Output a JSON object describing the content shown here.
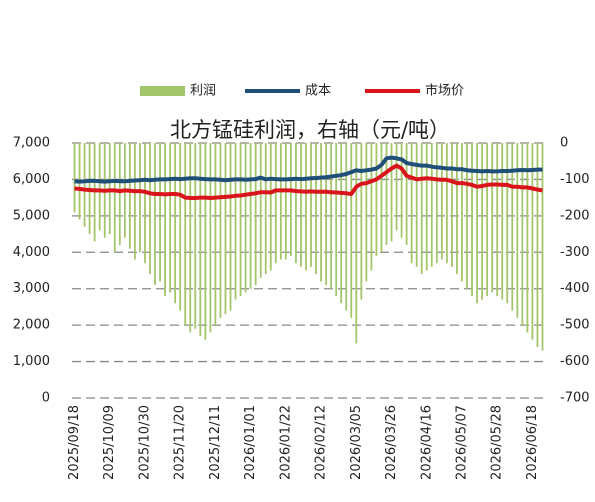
{
  "chart_data": {
    "type": "bar-line",
    "title": "北方锰硅利润，右轴（元/吨）",
    "categories": [
      "2025/09/18",
      null,
      null,
      null,
      null,
      null,
      null,
      "2025/10/09",
      null,
      null,
      null,
      null,
      null,
      null,
      "2025/10/30",
      null,
      null,
      null,
      null,
      null,
      null,
      "2025/11/20",
      null,
      null,
      null,
      null,
      null,
      null,
      "2025/12/11",
      null,
      null,
      null,
      null,
      null,
      null,
      "2026/01/01",
      null,
      null,
      null,
      null,
      null,
      null,
      "2026/01/22",
      null,
      null,
      null,
      null,
      null,
      null,
      "2026/02/12",
      null,
      null,
      null,
      null,
      null,
      null,
      "2026/03/05",
      null,
      null,
      null,
      null,
      null,
      null,
      "2026/03/26",
      null,
      null,
      null,
      null,
      null,
      null,
      "2026/04/16",
      null,
      null,
      null,
      null,
      null,
      null,
      "2026/05/07",
      null,
      null,
      null,
      null,
      null,
      null,
      "2026/05/28",
      null,
      null,
      null,
      null,
      null,
      null,
      "2026/06/18",
      null,
      null
    ],
    "series": [
      {
        "name": "利润",
        "kind": "bar",
        "axis": "y2",
        "color": "#a3c56b",
        "values": [
          -190,
          -210,
          -230,
          -250,
          -270,
          -240,
          -260,
          -250,
          -300,
          -280,
          -260,
          -290,
          -320,
          -300,
          -330,
          -360,
          -390,
          -380,
          -420,
          -410,
          -440,
          -460,
          -500,
          -520,
          -510,
          -530,
          -540,
          -520,
          -500,
          -480,
          -470,
          -460,
          -430,
          -420,
          -410,
          -400,
          -390,
          -370,
          -360,
          -350,
          -330,
          -320,
          -320,
          -310,
          -330,
          -340,
          -350,
          -340,
          -360,
          -380,
          -390,
          -400,
          -420,
          -440,
          -460,
          -480,
          -550,
          -430,
          -380,
          -350,
          -310,
          -300,
          -280,
          -270,
          -240,
          -260,
          -280,
          -330,
          -340,
          -360,
          -350,
          -340,
          -330,
          -320,
          -330,
          -340,
          -360,
          -380,
          -400,
          -420,
          -440,
          -430,
          -420,
          -410,
          -420,
          -430,
          -440,
          -460,
          -480,
          -500,
          -520,
          -540,
          -560,
          -570
        ]
      },
      {
        "name": "成本",
        "kind": "line",
        "color": "#1f4e79",
        "values": [
          5950,
          5940,
          5950,
          5960,
          5960,
          5950,
          5940,
          5950,
          5960,
          5950,
          5950,
          5960,
          5970,
          5980,
          5990,
          5980,
          5990,
          6000,
          6000,
          6010,
          6020,
          6010,
          6020,
          6030,
          6030,
          6020,
          6010,
          6000,
          6000,
          5990,
          5980,
          5990,
          6000,
          6000,
          5990,
          6000,
          6010,
          6050,
          6000,
          6020,
          6010,
          6000,
          6000,
          6010,
          6020,
          6010,
          6020,
          6030,
          6040,
          6050,
          6060,
          6080,
          6100,
          6120,
          6150,
          6200,
          6250,
          6230,
          6250,
          6270,
          6300,
          6400,
          6580,
          6600,
          6580,
          6550,
          6450,
          6420,
          6400,
          6380,
          6380,
          6350,
          6330,
          6320,
          6300,
          6300,
          6280,
          6280,
          6250,
          6240,
          6230,
          6220,
          6230,
          6220,
          6220,
          6230,
          6230,
          6240,
          6250,
          6260,
          6250,
          6260,
          6270,
          6270
        ]
      },
      {
        "name": "市场价",
        "kind": "line",
        "color": "#d9151b",
        "values": [
          5750,
          5740,
          5720,
          5710,
          5700,
          5700,
          5690,
          5700,
          5700,
          5680,
          5700,
          5690,
          5680,
          5680,
          5660,
          5620,
          5600,
          5600,
          5590,
          5600,
          5600,
          5580,
          5500,
          5490,
          5490,
          5500,
          5500,
          5490,
          5500,
          5510,
          5520,
          5530,
          5550,
          5560,
          5580,
          5600,
          5620,
          5650,
          5650,
          5640,
          5700,
          5700,
          5700,
          5700,
          5680,
          5670,
          5660,
          5670,
          5660,
          5660,
          5660,
          5650,
          5640,
          5630,
          5620,
          5600,
          5800,
          5880,
          5900,
          5950,
          6000,
          6100,
          6200,
          6300,
          6380,
          6300,
          6100,
          6050,
          6000,
          6020,
          6030,
          6020,
          6000,
          5990,
          5990,
          5950,
          5900,
          5900,
          5880,
          5850,
          5800,
          5820,
          5850,
          5860,
          5860,
          5850,
          5850,
          5800,
          5800,
          5780,
          5780,
          5750,
          5720,
          5700
        ]
      }
    ],
    "ylim": [
      0,
      7000
    ],
    "yticks": [
      0,
      {
        "value": 1000,
        "label": "1,000"
      },
      {
        "value": 2000,
        "label": "2,000"
      },
      {
        "value": 3000,
        "label": "3,000"
      },
      {
        "value": 4000,
        "label": "4,000"
      },
      {
        "value": 5000,
        "label": "5,000"
      },
      {
        "value": 6000,
        "label": "6,000"
      },
      {
        "value": 7000,
        "label": "7,000"
      }
    ],
    "y2lim": [
      -700,
      0
    ],
    "y2ticks": [
      0,
      -100,
      -200,
      -300,
      -400,
      -500,
      -600,
      -700
    ],
    "grid": true,
    "legend": "top"
  }
}
